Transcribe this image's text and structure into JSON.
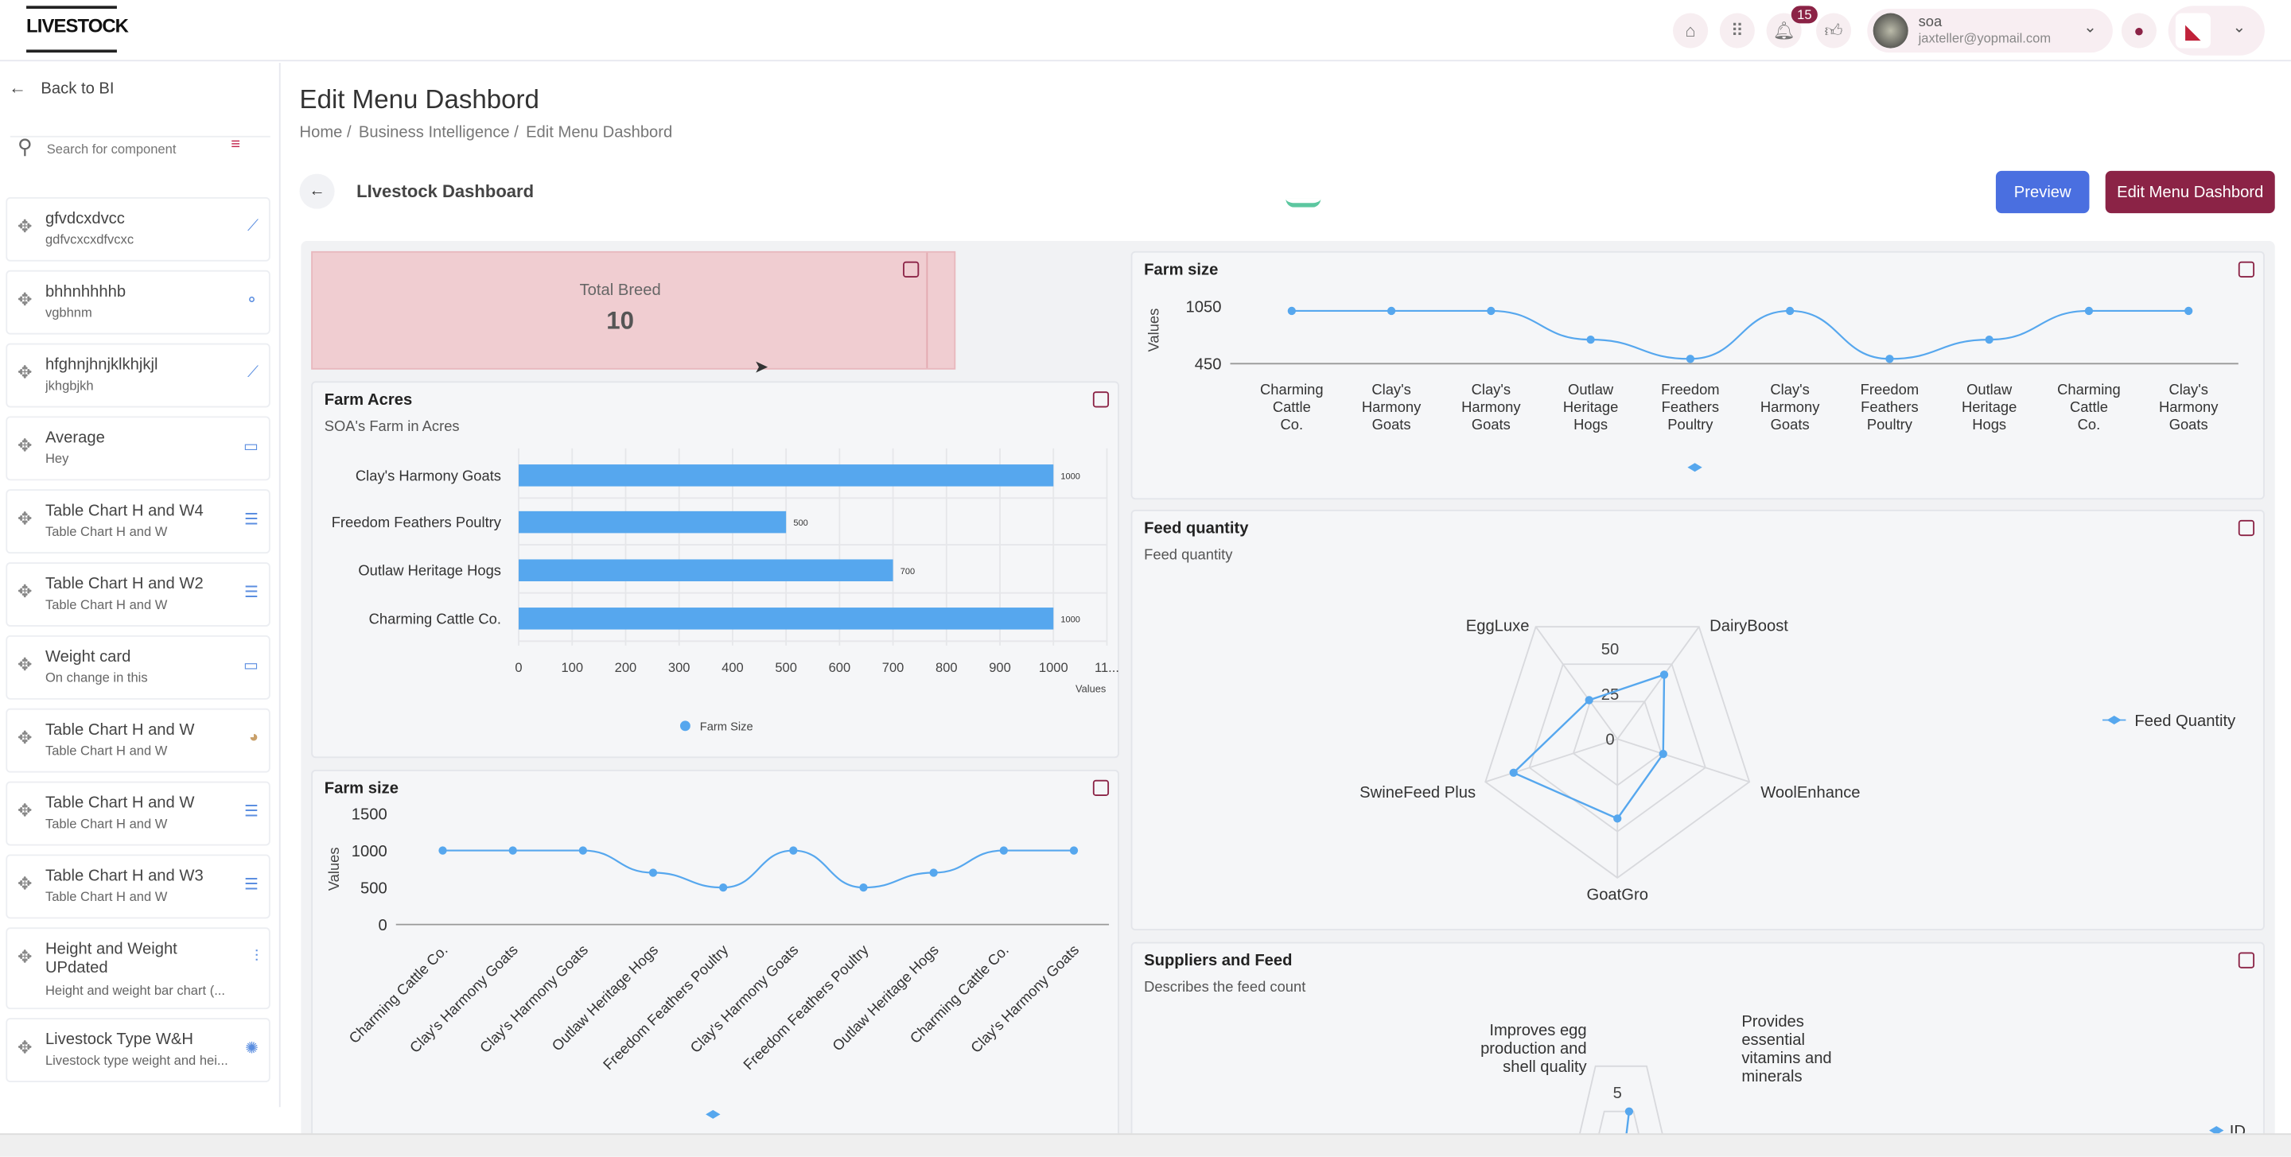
{
  "header": {
    "logo_text": "LIVESTOCK",
    "notification_count": "15",
    "user_name": "soa",
    "user_email": "jaxteller@yopmail.com"
  },
  "sidebar": {
    "back_label": "Back to BI",
    "search_placeholder": "Search for component",
    "items": [
      {
        "title": "gfvdcxdvcc",
        "subtitle": "gdfvcxcxdfvcxc",
        "icon": "line-chart-icon"
      },
      {
        "title": "bhhnhhhhb",
        "subtitle": "vgbhnm",
        "icon": "scatter-icon"
      },
      {
        "title": "hfghnjhnjklkhjkjl",
        "subtitle": "jkhgbjkh",
        "icon": "line-chart-icon"
      },
      {
        "title": "Average",
        "subtitle": "Hey",
        "icon": "card-icon"
      },
      {
        "title": "Table Chart H and W4",
        "subtitle": "Table Chart H and W",
        "icon": "table-icon"
      },
      {
        "title": "Table Chart H and W2",
        "subtitle": "Table Chart H and W",
        "icon": "table-icon"
      },
      {
        "title": "Weight card",
        "subtitle": "On change in this",
        "icon": "card-icon"
      },
      {
        "title": "Table Chart H and W",
        "subtitle": "Table Chart H and W",
        "icon": "pie-icon"
      },
      {
        "title": "Table Chart H and W",
        "subtitle": "Table Chart H and W",
        "icon": "table-icon"
      },
      {
        "title": "Table Chart H and W3",
        "subtitle": "Table Chart H and W",
        "icon": "table-icon"
      },
      {
        "title": "Height and Weight UPdated",
        "subtitle": "Height and weight bar chart (...",
        "icon": "bar-chart-icon"
      },
      {
        "title": "Livestock Type W&H",
        "subtitle": "Livestock type weight and hei...",
        "icon": "radar-icon"
      }
    ]
  },
  "page": {
    "title": "Edit Menu Dashbord",
    "breadcrumb": [
      "Home /",
      "Business Intelligence /",
      "Edit Menu Dashbord"
    ],
    "dashboard_name": "LIvestock Dashboard",
    "preview_label": "Preview",
    "edit_label": "Edit Menu Dashbord",
    "accent": "#8b2346",
    "primary": "#4a6fe0"
  },
  "total_breed": {
    "label": "Total Breed",
    "value": "10"
  },
  "chart_data": [
    {
      "id": "farm_acres",
      "type": "bar",
      "orientation": "horizontal",
      "title": "Farm Acres",
      "subtitle": "SOA's Farm in Acres",
      "categories": [
        "Clay's Harmony Goats",
        "Freedom Feathers Poultry",
        "Outlaw Heritage Hogs",
        "Charming Cattle Co."
      ],
      "values": [
        1000,
        500,
        700,
        1000
      ],
      "xlim": [
        0,
        1100
      ],
      "xticks": [
        "0",
        "100",
        "200",
        "300",
        "400",
        "500",
        "600",
        "700",
        "800",
        "900",
        "1000",
        "11..."
      ],
      "xlabel": "Values",
      "legend": "Farm Size",
      "legend_position": "bottom"
    },
    {
      "id": "farm_size_top",
      "type": "line",
      "title": "Farm size",
      "categories": [
        "Charming Cattle Co.",
        "Clay's Harmony Goats",
        "Clay's Harmony Goats",
        "Outlaw Heritage Hogs",
        "Freedom Feathers Poultry",
        "Clay's Harmony Goats",
        "Freedom Feathers Poultry",
        "Outlaw Heritage Hogs",
        "Charming Cattle Co.",
        "Clay's Harmony Goats"
      ],
      "values": [
        1000,
        1000,
        1000,
        700,
        500,
        1000,
        500,
        700,
        1000,
        1000
      ],
      "ylim": [
        450,
        1150
      ],
      "yticks": [
        "1050",
        "450"
      ],
      "ylabel": "Values"
    },
    {
      "id": "farm_size_bottom",
      "type": "line",
      "title": "Farm size",
      "categories": [
        "Charming Cattle Co.",
        "Clay's Harmony Goats",
        "Clay's Harmony Goats",
        "Outlaw Heritage Hogs",
        "Freedom Feathers Poultry",
        "Clay's Harmony Goats",
        "Freedom Feathers Poultry",
        "Outlaw Heritage Hogs",
        "Charming Cattle Co.",
        "Clay's Harmony Goats"
      ],
      "values": [
        1000,
        1000,
        1000,
        700,
        500,
        1000,
        500,
        700,
        1000,
        1000
      ],
      "ylim": [
        0,
        1500
      ],
      "yticks": [
        "0",
        "500",
        "1000",
        "1500"
      ],
      "ylabel": "Values"
    },
    {
      "id": "feed_quantity",
      "type": "radar",
      "title": "Feed quantity",
      "subtitle": "Feed quantity",
      "axes": [
        "GoatGro",
        "WoolEnhance",
        "DairyBoost",
        "EggLuxe",
        "SwineFeed Plus"
      ],
      "values": [
        43,
        26,
        43,
        26,
        59
      ],
      "rlim": [
        0,
        75
      ],
      "rticks": [
        "0",
        "25",
        "50"
      ],
      "legend": "Feed Quantity",
      "legend_position": "right"
    },
    {
      "id": "suppliers_feed",
      "type": "radar",
      "title": "Suppliers and Feed",
      "subtitle": "Describes the feed count",
      "axes_visible": [
        "Improves egg production and shell quality",
        "Provides essential vitamins and minerals"
      ],
      "rticks": [
        "5"
      ],
      "legend": "ID",
      "legend_position": "right"
    }
  ]
}
